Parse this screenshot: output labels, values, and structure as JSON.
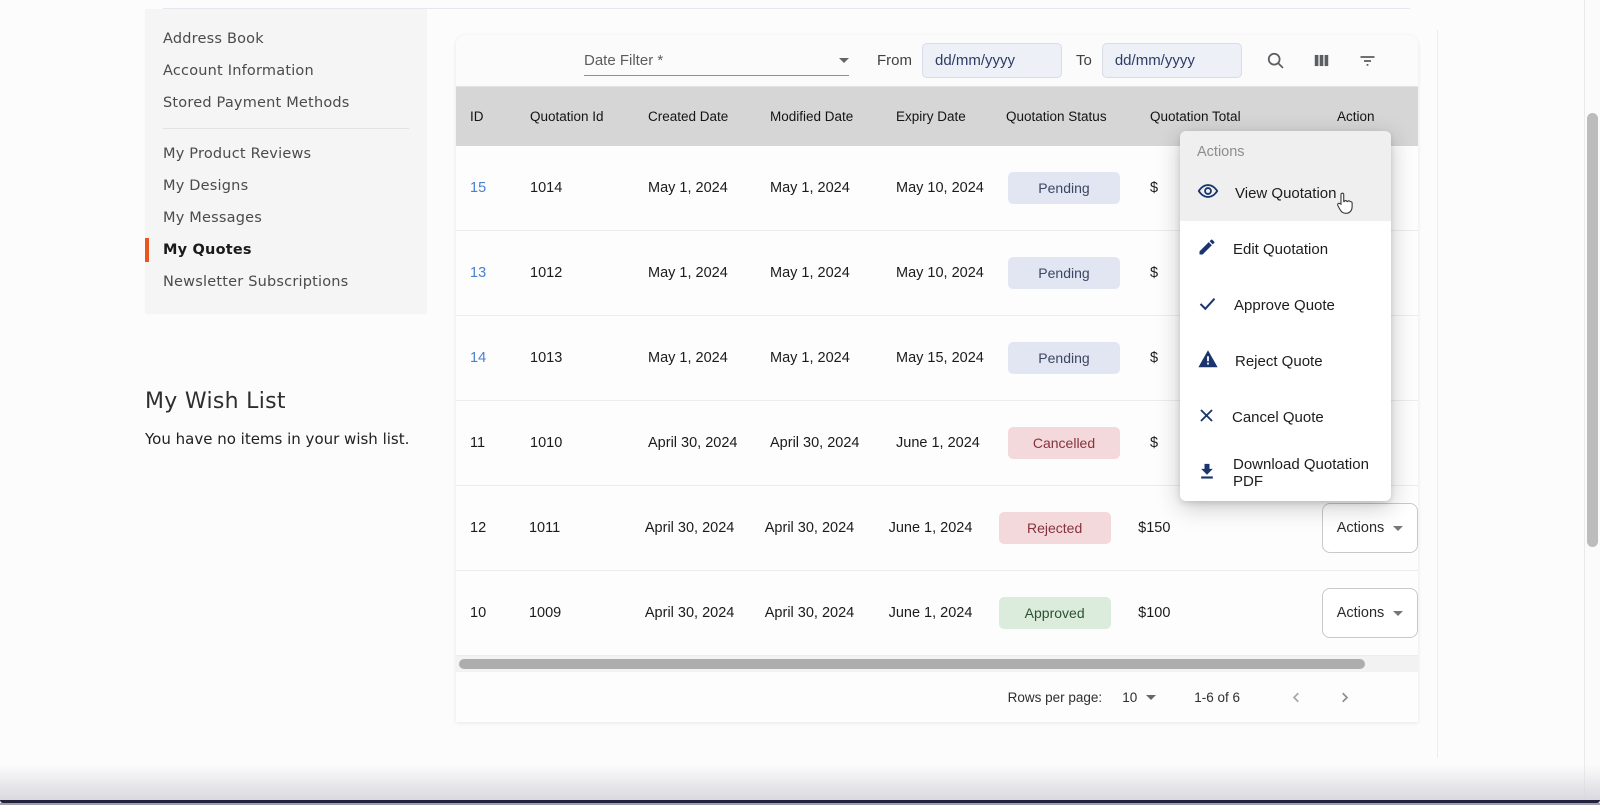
{
  "colors": {
    "accent_orange": "#e8561e",
    "menu_icon_navy": "#1a356e",
    "id_link_blue": "#4a80d1",
    "badge_pending_bg": "#e2e6f3",
    "badge_danger_bg": "#f4d9dc",
    "badge_success_bg": "#dcecdc"
  },
  "sidebar": {
    "items": [
      {
        "label": "Address Book",
        "active": false,
        "divider_before": false
      },
      {
        "label": "Account Information",
        "active": false,
        "divider_before": false
      },
      {
        "label": "Stored Payment Methods",
        "active": false,
        "divider_before": false
      },
      {
        "label": "My Product Reviews",
        "active": false,
        "divider_before": true
      },
      {
        "label": "My Designs",
        "active": false,
        "divider_before": false
      },
      {
        "label": "My Messages",
        "active": false,
        "divider_before": false
      },
      {
        "label": "My Quotes",
        "active": true,
        "divider_before": false
      },
      {
        "label": "Newsletter Subscriptions",
        "active": false,
        "divider_before": false
      }
    ],
    "wishlist": {
      "title": "My Wish List",
      "empty_text": "You have no items in your wish list."
    }
  },
  "filter_bar": {
    "date_filter_label": "Date Filter *",
    "from_label": "From",
    "to_label": "To",
    "date_placeholder": "dd/mm/yyyy",
    "icons": [
      "search-icon",
      "view-columns-icon",
      "filter-list-icon"
    ]
  },
  "table": {
    "columns": [
      "ID",
      "Quotation Id",
      "Created Date",
      "Modified Date",
      "Expiry Date",
      "Quotation Status",
      "Quotation Total",
      "Action"
    ],
    "rows": [
      {
        "id": "15",
        "id_is_link": true,
        "quotation_id": "1014",
        "created": "May 1, 2024",
        "modified": "May 1, 2024",
        "expiry": "May 10, 2024",
        "status": "Pending",
        "total": "$",
        "action_button_visible": false
      },
      {
        "id": "13",
        "id_is_link": true,
        "quotation_id": "1012",
        "created": "May 1, 2024",
        "modified": "May 1, 2024",
        "expiry": "May 10, 2024",
        "status": "Pending",
        "total": "$",
        "action_button_visible": false
      },
      {
        "id": "14",
        "id_is_link": true,
        "quotation_id": "1013",
        "created": "May 1, 2024",
        "modified": "May 1, 2024",
        "expiry": "May 15, 2024",
        "status": "Pending",
        "total": "$",
        "action_button_visible": false
      },
      {
        "id": "11",
        "id_is_link": false,
        "quotation_id": "1010",
        "created": "April 30, 2024",
        "modified": "April 30, 2024",
        "expiry": "June 1, 2024",
        "status": "Cancelled",
        "total": "$",
        "action_button_visible": false
      },
      {
        "id": "12",
        "id_is_link": false,
        "quotation_id": "1011",
        "created": "April 30, 2024",
        "modified": "April 30, 2024",
        "expiry": "June 1, 2024",
        "status": "Rejected",
        "total": "$150",
        "action_button_visible": true
      },
      {
        "id": "10",
        "id_is_link": false,
        "quotation_id": "1009",
        "created": "April 30, 2024",
        "modified": "April 30, 2024",
        "expiry": "June 1, 2024",
        "status": "Approved",
        "total": "$100",
        "action_button_visible": true
      }
    ],
    "status_styles": {
      "Pending": "pending",
      "Cancelled": "danger",
      "Rejected": "danger",
      "Approved": "success"
    },
    "actions_button_label": "Actions"
  },
  "actions_menu": {
    "header": "Actions",
    "items": [
      {
        "icon": "eye-icon",
        "label": "View Quotation",
        "highlighted": true
      },
      {
        "icon": "pencil-icon",
        "label": "Edit Quotation",
        "highlighted": false
      },
      {
        "icon": "check-icon",
        "label": "Approve Quote",
        "highlighted": false
      },
      {
        "icon": "warning-icon",
        "label": "Reject Quote",
        "highlighted": false
      },
      {
        "icon": "x-icon",
        "label": "Cancel Quote",
        "highlighted": false
      },
      {
        "icon": "download-icon",
        "label": "Download Quotation PDF",
        "highlighted": false
      }
    ]
  },
  "pagination": {
    "rows_per_page_label": "Rows per page:",
    "rows_per_page_value": "10",
    "range_text": "1-6 of 6"
  }
}
